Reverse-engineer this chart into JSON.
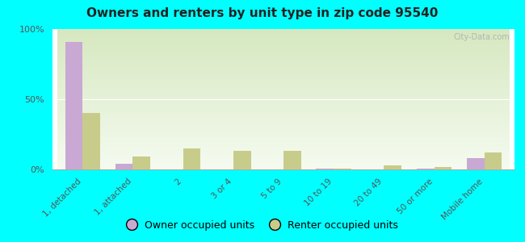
{
  "title": "Owners and renters by unit type in zip code 95540",
  "categories": [
    "1, detached",
    "1, attached",
    "2",
    "3 or 4",
    "5 to 9",
    "10 to 19",
    "20 to 49",
    "50 or more",
    "Mobile home"
  ],
  "owner_values": [
    91,
    4,
    0,
    0,
    0,
    0.5,
    0,
    0.5,
    8
  ],
  "renter_values": [
    40,
    9,
    15,
    13,
    13,
    0.5,
    3,
    1.5,
    12
  ],
  "owner_color": "#c9a8d4",
  "renter_color": "#c8cc8a",
  "background_color": "#00ffff",
  "gradient_top": "#d6e8c0",
  "gradient_bottom": "#f5fbf0",
  "ylim": [
    0,
    100
  ],
  "yticks": [
    0,
    50,
    100
  ],
  "ytick_labels": [
    "0%",
    "50%",
    "100%"
  ],
  "legend_owner": "Owner occupied units",
  "legend_renter": "Renter occupied units",
  "bar_width": 0.35,
  "watermark": "City-Data.com"
}
